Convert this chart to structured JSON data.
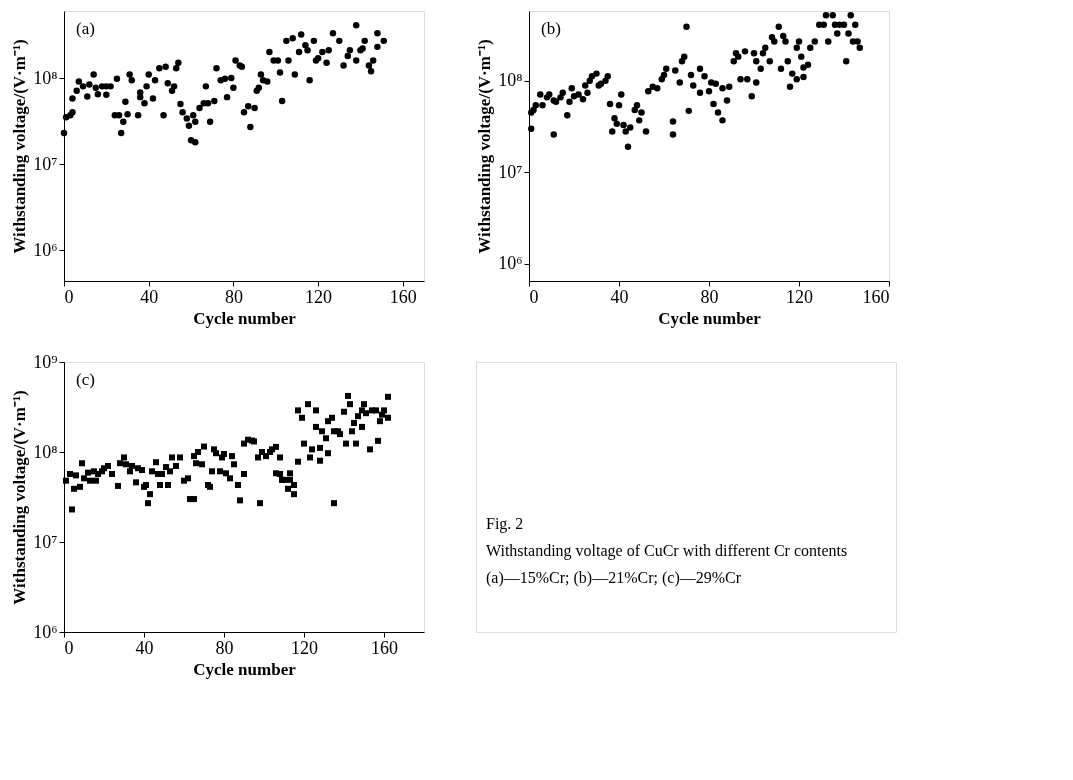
{
  "chart_data": [
    {
      "type": "scatter",
      "marker": "circle",
      "color": "#000000",
      "grid": false,
      "annotations": [
        "(a)"
      ],
      "xlabel": "Cycle number",
      "ylabel": "Withstanding voltage/(V·m⁻¹)",
      "log": "y",
      "xlim": [
        0,
        170
      ],
      "xticks": [
        0,
        40,
        80,
        120,
        160
      ],
      "ylim": [
        440000,
        600000000
      ],
      "yticks": [
        {
          "value": 1000000,
          "label": "10⁶"
        },
        {
          "value": 10000000,
          "label": "10⁷"
        },
        {
          "value": 100000000,
          "label": "10⁸"
        }
      ],
      "x": [
        0,
        1,
        3,
        4,
        4,
        6,
        7,
        9,
        11,
        12,
        14,
        15,
        16,
        18,
        20,
        20,
        22,
        25,
        24,
        26,
        27,
        28,
        29,
        30,
        31,
        32,
        35,
        36,
        38,
        36,
        39,
        40,
        42,
        43,
        45,
        47,
        48,
        49,
        51,
        52,
        53,
        54,
        55,
        56,
        58,
        59,
        60,
        62,
        61,
        62,
        64,
        66,
        67,
        68,
        69,
        71,
        72,
        74,
        76,
        77,
        79,
        80,
        81,
        83,
        84,
        85,
        87,
        88,
        90,
        91,
        92,
        93,
        94,
        96,
        97,
        99,
        101,
        102,
        103,
        105,
        106,
        108,
        109,
        111,
        112,
        114,
        115,
        116,
        118,
        119,
        120,
        122,
        124,
        125,
        127,
        130,
        132,
        134,
        135,
        138,
        138,
        140,
        141,
        142,
        144,
        145,
        146,
        148,
        148,
        151
      ],
      "values": [
        23000000.0,
        35000000.0,
        37000000.0,
        40000000.0,
        58000000.0,
        71000000.0,
        91000000.0,
        80000000.0,
        61000000.0,
        84000000.0,
        110000000.0,
        77000000.0,
        65000000.0,
        80000000.0,
        80000000.0,
        64000000.0,
        80000000.0,
        98000000.0,
        37000000.0,
        37000000.0,
        23000000.0,
        31000000.0,
        53000000.0,
        38000000.0,
        110000000.0,
        94000000.0,
        37000000.0,
        68000000.0,
        51000000.0,
        60000000.0,
        80000000.0,
        110000000.0,
        58000000.0,
        94000000.0,
        130000000.0,
        37000000.0,
        135000000.0,
        87000000.0,
        71000000.0,
        80000000.0,
        130000000.0,
        150000000.0,
        50000000.0,
        40000000.0,
        34000000.0,
        28000000.0,
        19000000.0,
        18000000.0,
        37000000.0,
        31000000.0,
        45000000.0,
        51000000.0,
        80000000.0,
        51000000.0,
        31000000.0,
        54000000.0,
        130000000.0,
        94000000.0,
        98000000.0,
        60000000.0,
        100000000.0,
        77000000.0,
        160000000.0,
        140000000.0,
        135000000.0,
        40000000.0,
        47000000.0,
        27000000.0,
        45000000.0,
        71000000.0,
        77000000.0,
        110000000.0,
        94000000.0,
        91000000.0,
        200000000.0,
        160000000.0,
        160000000.0,
        116000000.0,
        54000000.0,
        270000000.0,
        160000000.0,
        290000000.0,
        110000000.0,
        200000000.0,
        320000000.0,
        240000000.0,
        210000000.0,
        94000000.0,
        270000000.0,
        160000000.0,
        170000000.0,
        200000000.0,
        150000000.0,
        210000000.0,
        330000000.0,
        270000000.0,
        140000000.0,
        180000000.0,
        210000000.0,
        410000000.0,
        160000000.0,
        210000000.0,
        220000000.0,
        270000000.0,
        140000000.0,
        120000000.0,
        160000000.0,
        330000000.0,
        230000000.0,
        270000000.0
      ]
    },
    {
      "type": "scatter",
      "marker": "circle",
      "color": "#000000",
      "grid": false,
      "annotations": [
        "(b)"
      ],
      "xlabel": "Cycle number",
      "ylabel": "Withstanding voltage/(V·m⁻¹)",
      "log": "y",
      "xlim": [
        0,
        160
      ],
      "xticks": [
        0,
        40,
        80,
        120,
        160
      ],
      "ylim": [
        650000,
        580000000
      ],
      "yticks": [
        {
          "value": 1000000,
          "label": "10⁶"
        },
        {
          "value": 10000000,
          "label": "10⁷"
        },
        {
          "value": 100000000,
          "label": "10⁸"
        }
      ],
      "x": [
        1,
        1,
        2,
        3,
        5,
        6,
        8,
        9,
        11,
        11,
        12,
        14,
        15,
        17,
        18,
        19,
        20,
        22,
        24,
        25,
        26,
        27,
        28,
        30,
        31,
        32,
        34,
        35,
        36,
        37,
        38,
        39,
        40,
        41,
        42,
        43,
        44,
        45,
        47,
        48,
        49,
        50,
        52,
        53,
        55,
        57,
        59,
        60,
        61,
        64,
        64,
        65,
        67,
        68,
        69,
        70,
        71,
        72,
        73,
        76,
        76,
        78,
        80,
        81,
        82,
        83,
        84,
        86,
        86,
        88,
        89,
        91,
        92,
        93,
        94,
        96,
        97,
        99,
        100,
        101,
        101,
        103,
        104,
        105,
        107,
        108,
        109,
        111,
        112,
        113,
        114,
        115,
        116,
        117,
        119,
        119,
        120,
        121,
        122,
        122,
        124,
        125,
        127,
        129,
        131,
        132,
        133,
        135,
        136,
        137,
        138,
        140,
        141,
        142,
        143,
        144,
        145,
        146,
        147
      ],
      "values": [
        30000000.0,
        45000000.0,
        48000000.0,
        54000000.0,
        71000000.0,
        54000000.0,
        66000000.0,
        71000000.0,
        26000000.0,
        61000000.0,
        59000000.0,
        66000000.0,
        74000000.0,
        42000000.0,
        59000000.0,
        83000000.0,
        68000000.0,
        71000000.0,
        63000000.0,
        89000000.0,
        74000000.0,
        100000000.0,
        112000000.0,
        120000000.0,
        89000000.0,
        93000000.0,
        100000000.0,
        112000000.0,
        56000000.0,
        28000000.0,
        39000000.0,
        34000000.0,
        54000000.0,
        71000000.0,
        33000000.0,
        28000000.0,
        19000000.0,
        31000000.0,
        48000000.0,
        54000000.0,
        37000000.0,
        45000000.0,
        28000000.0,
        77000000.0,
        86000000.0,
        83000000.0,
        104000000.0,
        116000000.0,
        136000000.0,
        26000000.0,
        36000000.0,
        130000000.0,
        96000000.0,
        164000000.0,
        184000000.0,
        390000000.0,
        47000000.0,
        116000000.0,
        89000000.0,
        136000000.0,
        74000000.0,
        112000000.0,
        77000000.0,
        96000000.0,
        56000000.0,
        93000000.0,
        45000000.0,
        83000000.0,
        37000000.0,
        61000000.0,
        86000000.0,
        164000000.0,
        200000000.0,
        184000000.0,
        104000000.0,
        210000000.0,
        104000000.0,
        68000000.0,
        200000000.0,
        96000000.0,
        164000000.0,
        136000000.0,
        200000000.0,
        230000000.0,
        164000000.0,
        300000000.0,
        270000000.0,
        390000000.0,
        136000000.0,
        310000000.0,
        270000000.0,
        164000000.0,
        86000000.0,
        120000000.0,
        104000000.0,
        230000000.0,
        270000000.0,
        184000000.0,
        140000000.0,
        110000000.0,
        150000000.0,
        230000000.0,
        270000000.0,
        410000000.0,
        410000000.0,
        520000000.0,
        270000000.0,
        520000000.0,
        410000000.0,
        330000000.0,
        410000000.0,
        410000000.0,
        164000000.0,
        330000000.0,
        520000000.0,
        270000000.0,
        410000000.0,
        270000000.0,
        230000000.0
      ]
    },
    {
      "type": "scatter",
      "marker": "square",
      "color": "#000000",
      "grid": false,
      "annotations": [
        "(c)"
      ],
      "xlabel": "Cycle number",
      "ylabel": "Withstanding voltage/(V·m⁻¹)",
      "log": "y",
      "xlim": [
        0,
        180
      ],
      "xticks": [
        0,
        40,
        80,
        120,
        160
      ],
      "ylim": [
        1000000,
        1000000000
      ],
      "yticks": [
        {
          "value": 1000000,
          "label": "10⁶"
        },
        {
          "value": 10000000,
          "label": "10⁷"
        },
        {
          "value": 100000000,
          "label": "10⁸"
        },
        {
          "value": 1000000000,
          "label": "10⁹"
        }
      ],
      "x": [
        1,
        3,
        4,
        5,
        6,
        8,
        9,
        10,
        12,
        13,
        15,
        16,
        17,
        19,
        20,
        22,
        24,
        27,
        28,
        30,
        31,
        33,
        34,
        36,
        37,
        39,
        40,
        41,
        42,
        43,
        44,
        46,
        47,
        48,
        49,
        51,
        52,
        53,
        54,
        56,
        58,
        60,
        62,
        63,
        65,
        65,
        66,
        67,
        69,
        70,
        72,
        73,
        74,
        75,
        76,
        78,
        79,
        80,
        81,
        83,
        84,
        85,
        87,
        88,
        90,
        90,
        92,
        94,
        95,
        97,
        98,
        99,
        101,
        103,
        104,
        106,
        106,
        108,
        108,
        109,
        110,
        112,
        113,
        113,
        115,
        115,
        117,
        117,
        119,
        120,
        122,
        123,
        124,
        126,
        126,
        128,
        128,
        129,
        131,
        132,
        132,
        134,
        135,
        135,
        137,
        138,
        140,
        141,
        142,
        143,
        144,
        145,
        146,
        147,
        149,
        149,
        150,
        151,
        153,
        154,
        156,
        157,
        158,
        159,
        160,
        162,
        162
      ],
      "values": [
        48000000.0,
        57000000.0,
        23000000.0,
        39000000.0,
        55000000.0,
        41000000.0,
        75000000.0,
        51000000.0,
        59000000.0,
        48000000.0,
        61000000.0,
        48000000.0,
        57000000.0,
        61000000.0,
        66000000.0,
        70000000.0,
        57000000.0,
        42000000.0,
        75000000.0,
        87000000.0,
        73000000.0,
        61000000.0,
        70000000.0,
        46000000.0,
        66000000.0,
        63000000.0,
        41000000.0,
        43000000.0,
        27000000.0,
        34000000.0,
        61000000.0,
        77000000.0,
        57000000.0,
        43000000.0,
        57000000.0,
        68000000.0,
        43000000.0,
        61000000.0,
        87000000.0,
        70000000.0,
        87000000.0,
        48000000.0,
        51000000.0,
        30000000.0,
        30000000.0,
        90000000.0,
        75000000.0,
        100000000.0,
        73000000.0,
        115000000.0,
        43000000.0,
        41000000.0,
        61000000.0,
        107000000.0,
        97000000.0,
        61000000.0,
        87000000.0,
        95000000.0,
        58000000.0,
        51000000.0,
        90000000.0,
        73000000.0,
        43000000.0,
        29000000.0,
        57000000.0,
        124000000.0,
        137000000.0,
        134000000.0,
        131000000.0,
        87000000.0,
        27000000.0,
        100000000.0,
        90000000.0,
        100000000.0,
        107000000.0,
        114000000.0,
        58000000.0,
        87000000.0,
        57000000.0,
        49000000.0,
        49000000.0,
        39000000.0,
        58000000.0,
        49000000.0,
        34000000.0,
        43000000.0,
        78000000.0,
        290000000.0,
        240000000.0,
        124000000.0,
        340000000.0,
        87000000.0,
        107000000.0,
        190000000.0,
        290000000.0,
        111000000.0,
        80000000.0,
        170000000.0,
        142000000.0,
        97000000.0,
        220000000.0,
        240000000.0,
        27000000.0,
        170000000.0,
        170000000.0,
        158000000.0,
        280000000.0,
        124000000.0,
        420000000.0,
        340000000.0,
        170000000.0,
        210000000.0,
        124000000.0,
        250000000.0,
        190000000.0,
        290000000.0,
        340000000.0,
        270000000.0,
        107000000.0,
        290000000.0,
        290000000.0,
        133000000.0,
        220000000.0,
        260000000.0,
        290000000.0,
        410000000.0,
        240000000.0
      ]
    },
    {
      "type": "other",
      "annotations": [
        "Fig. 2",
        "Withstanding voltage of CuCr with different Cr contents",
        "(a)—15%Cr; (b)—21%Cr; (c)—29%Cr"
      ]
    }
  ]
}
